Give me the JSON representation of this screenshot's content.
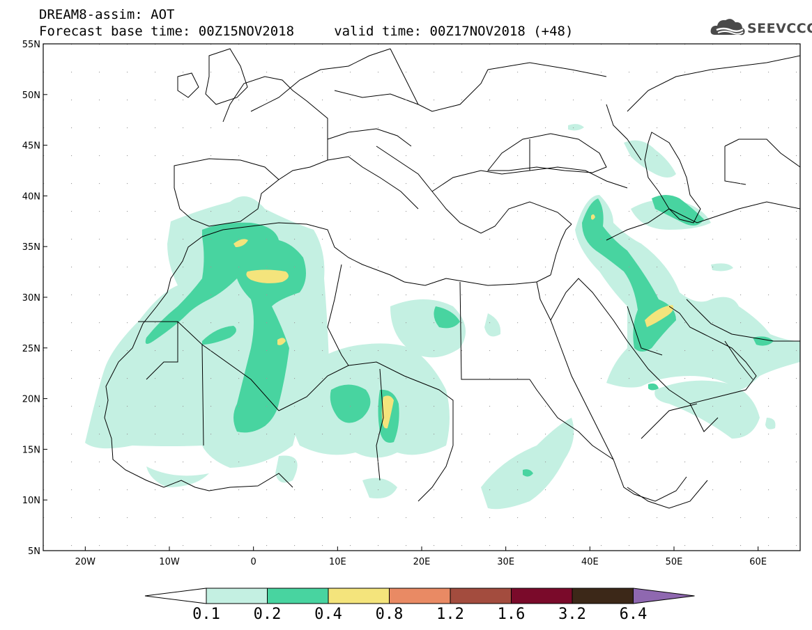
{
  "header": {
    "line1": "DREAM8-assim: AOT",
    "line2": "Forecast base time: 00Z15NOV2018     valid time: 00Z17NOV2018 (+48)"
  },
  "logo": {
    "text": "SEEVCCC",
    "icon": "cloud-icon"
  },
  "map": {
    "lon_range": [
      -25,
      65
    ],
    "lat_range": [
      5,
      55
    ],
    "lat_labels": [
      "55N",
      "50N",
      "45N",
      "40N",
      "35N",
      "30N",
      "25N",
      "20N",
      "15N",
      "10N",
      "5N"
    ],
    "lon_labels": [
      "20W",
      "10W",
      "0",
      "10E",
      "20E",
      "30E",
      "40E",
      "50E",
      "60E"
    ]
  },
  "colorbar": {
    "labels": [
      "0.1",
      "0.2",
      "0.4",
      "0.8",
      "1.2",
      "1.6",
      "3.2",
      "6.4"
    ],
    "colors": [
      "#ffffff",
      "#c4f0e2",
      "#48d4a0",
      "#f4e47c",
      "#e98a64",
      "#a34c3e",
      "#7a0a2a",
      "#3c2818",
      "#8f68b0"
    ]
  }
}
